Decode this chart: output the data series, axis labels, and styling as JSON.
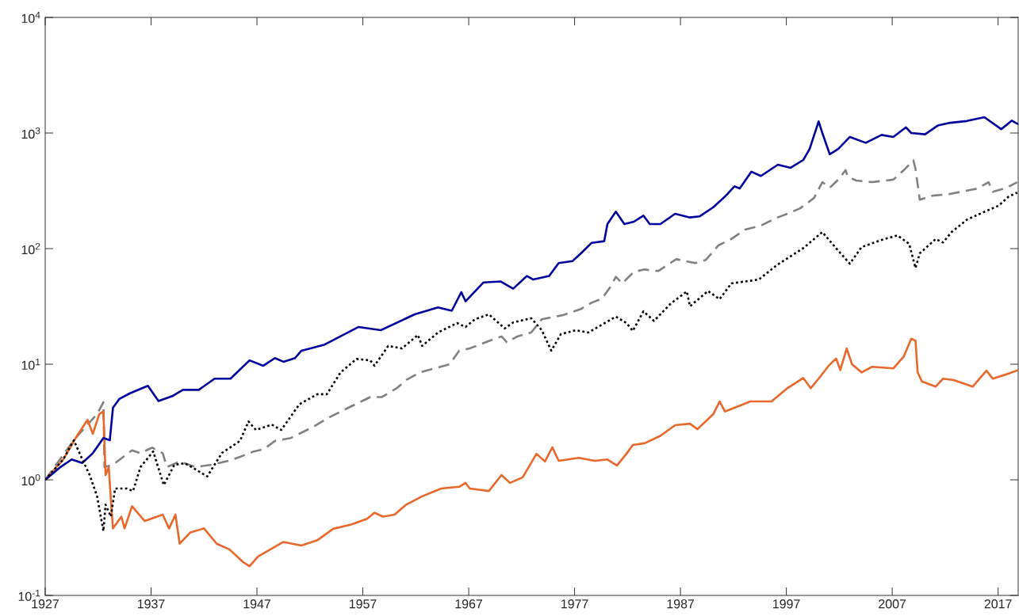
{
  "chart_data": {
    "type": "line",
    "log": "y",
    "xlim": [
      1927,
      2018.9
    ],
    "ylim": [
      0.1,
      10000
    ],
    "xticks": [
      1927,
      1937,
      1947,
      1957,
      1967,
      1977,
      1987,
      1997,
      2007,
      2017
    ],
    "yticks": [
      {
        "value": 0.1,
        "label": "10$^{-1}$"
      },
      {
        "value": 1,
        "label": "10$^{0}$"
      },
      {
        "value": 10,
        "label": "10$^{1}$"
      },
      {
        "value": 100,
        "label": "10$^{2}$"
      },
      {
        "value": 1000,
        "label": "10$^{3}$"
      },
      {
        "value": 10000,
        "label": "10$^{4}$"
      }
    ],
    "series": [
      {
        "color": "#808080",
        "line_style": "dashed",
        "x": [
          1927,
          1929.7,
          1931,
          1931.9,
          1932.5,
          1932.6,
          1933.4,
          1935.2,
          1936,
          1937.1,
          1938.1,
          1938.5,
          1939.7,
          1941.2,
          1942.7,
          1944.3,
          1945.4,
          1946.7,
          1947.7,
          1948.7,
          1950.2,
          1952.4,
          1953.9,
          1955.4,
          1957.7,
          1958.8,
          1960.2,
          1961.1,
          1962.4,
          1965.2,
          1966.1,
          1967.1,
          1968.6,
          1970.1,
          1970.6,
          1971.6,
          1972.9,
          1973.9,
          1975.9,
          1977.6,
          1978.6,
          1979.6,
          1980.4,
          1980.9,
          1981.5,
          1982.6,
          1983.6,
          1984.9,
          1986.6,
          1988.4,
          1989.4,
          1990.6,
          1991.8,
          1993.1,
          1994.6,
          1996.1,
          1997.1,
          1998.3,
          1999.6,
          2000.4,
          2001.1,
          2001.9,
          2002.6,
          2002.8,
          2003.6,
          2005.1,
          2007.1,
          2008.1,
          2009,
          2009.2,
          2009.6,
          2010.8,
          2012.3,
          2013.5,
          2015,
          2016.1,
          2016.5,
          2017.8,
          2018.8
        ],
        "values": [
          1.0,
          2.2,
          3.0,
          3.7,
          4.7,
          1.29,
          1.35,
          1.8,
          1.7,
          1.9,
          1.7,
          1.29,
          1.44,
          1.29,
          1.35,
          1.46,
          1.58,
          1.76,
          1.85,
          2.17,
          2.3,
          2.9,
          3.5,
          4.1,
          5.2,
          5.2,
          6.2,
          7.3,
          8.5,
          10,
          13.1,
          13.7,
          15.5,
          17.4,
          15.5,
          17.4,
          18.8,
          24.5,
          26.6,
          30,
          34,
          37,
          47,
          57,
          50,
          63,
          66,
          64,
          81,
          75,
          80,
          107,
          121,
          146,
          158,
          185,
          200,
          223,
          273,
          376,
          336,
          395,
          478,
          420,
          388,
          376,
          395,
          478,
          580,
          490,
          265,
          287,
          295,
          310,
          330,
          376,
          310,
          336,
          376
        ]
      },
      {
        "color": "#000000",
        "line_style": "dotted",
        "x": [
          1927,
          1928.7,
          1929.7,
          1930.4,
          1931.2,
          1931.9,
          1932.5,
          1932.7,
          1933.2,
          1933.6,
          1934.7,
          1935.3,
          1936,
          1937.2,
          1938.2,
          1939.2,
          1940.2,
          1941.2,
          1942.3,
          1943.7,
          1945.4,
          1946.2,
          1946.9,
          1948.4,
          1949.3,
          1951,
          1952.7,
          1953.6,
          1954.9,
          1956.4,
          1957.7,
          1958.1,
          1959.4,
          1960.7,
          1962.2,
          1962.6,
          1964.1,
          1965.9,
          1966.7,
          1967.6,
          1968.9,
          1970.4,
          1971.2,
          1972.9,
          1973.9,
          1974.8,
          1975.7,
          1977.1,
          1978.3,
          1979.6,
          1980.9,
          1981.9,
          1982.5,
          1983.5,
          1984.5,
          1986.1,
          1987.6,
          1987.9,
          1989.6,
          1990.7,
          1991.8,
          1994.4,
          1996.1,
          1998.6,
          2000.4,
          2001.9,
          2003,
          2004.1,
          2006,
          2007.5,
          2008.6,
          2009.2,
          2009.6,
          2011.1,
          2011.8,
          2012.6,
          2014.1,
          2015.8,
          2017.05,
          2018,
          2018.8
        ],
        "values": [
          1.0,
          1.5,
          2.2,
          1.58,
          1.1,
          0.72,
          0.36,
          0.61,
          0.48,
          0.84,
          0.84,
          0.8,
          1.29,
          1.76,
          0.9,
          1.35,
          1.39,
          1.23,
          1.07,
          1.71,
          2.17,
          3.2,
          2.7,
          3.0,
          2.7,
          4.5,
          5.5,
          5.5,
          8.5,
          11.1,
          10.8,
          9.7,
          14.4,
          13.7,
          17.9,
          14.4,
          18.8,
          22.7,
          21,
          24.5,
          27,
          20.4,
          23,
          25,
          19.7,
          13.1,
          18.2,
          19.7,
          18.8,
          22,
          25.8,
          22.7,
          19.4,
          28.7,
          23.7,
          33.6,
          42.6,
          31.7,
          43,
          36.5,
          50,
          54,
          72,
          101,
          139,
          96,
          74,
          103,
          119,
          130,
          110,
          68,
          91,
          121,
          113,
          139,
          179,
          210,
          235,
          282,
          305
        ]
      },
      {
        "color": "#e8672a",
        "line_style": "solid",
        "x": [
          1927,
          1928.7,
          1930,
          1931,
          1931.5,
          1932.1,
          1932.5,
          1932.7,
          1933,
          1933.3,
          1933.4,
          1934.2,
          1934.5,
          1935.2,
          1936.4,
          1938.1,
          1938.7,
          1939.3,
          1939.7,
          1940.7,
          1942,
          1943.2,
          1944.4,
          1945.7,
          1946.3,
          1947.1,
          1948.4,
          1949.5,
          1951.2,
          1952.7,
          1954.2,
          1955.9,
          1957.4,
          1958.1,
          1958.9,
          1960,
          1961.1,
          1962.6,
          1964.4,
          1966.1,
          1966.7,
          1967.1,
          1968.9,
          1970.1,
          1970.9,
          1972.1,
          1973.4,
          1974.2,
          1974.9,
          1975.5,
          1977.4,
          1978.9,
          1980.1,
          1981,
          1981.9,
          1982.5,
          1983.6,
          1985.1,
          1986.5,
          1987.9,
          1988.6,
          1990.1,
          1990.7,
          1991.2,
          1993.6,
          1995.6,
          1997.1,
          1998.6,
          1999.3,
          2000.05,
          2001,
          2001.7,
          2002.1,
          2002.7,
          2003.2,
          2004.1,
          2005.1,
          2007.1,
          2008.1,
          2008.8,
          2009.2,
          2009.4,
          2009.8,
          2011.1,
          2011.8,
          2012.8,
          2014.6,
          2015.9,
          2016.5,
          2018,
          2018.9
        ],
        "values": [
          1.0,
          1.5,
          2.4,
          3.3,
          2.5,
          3.7,
          3.9,
          1.1,
          1.29,
          0.5,
          0.38,
          0.48,
          0.38,
          0.59,
          0.44,
          0.5,
          0.38,
          0.5,
          0.28,
          0.35,
          0.38,
          0.28,
          0.25,
          0.194,
          0.179,
          0.217,
          0.254,
          0.29,
          0.27,
          0.3,
          0.377,
          0.41,
          0.46,
          0.52,
          0.48,
          0.5,
          0.61,
          0.72,
          0.84,
          0.87,
          0.94,
          0.84,
          0.8,
          1.1,
          0.94,
          1.05,
          1.68,
          1.44,
          1.91,
          1.46,
          1.55,
          1.46,
          1.5,
          1.33,
          1.68,
          2.0,
          2.07,
          2.4,
          2.97,
          3.06,
          2.74,
          3.7,
          4.76,
          3.9,
          4.76,
          4.76,
          6.2,
          7.6,
          6.2,
          7.5,
          9.7,
          11.2,
          8.9,
          13.7,
          10,
          8.5,
          9.5,
          9.2,
          11.7,
          16.6,
          16,
          8.5,
          7.1,
          6.4,
          7.5,
          7.3,
          6.4,
          8.8,
          7.5,
          8.3,
          8.9
        ]
      },
      {
        "color": "#00009f",
        "line_style": "solid",
        "x": [
          1927,
          1928.5,
          1929.5,
          1930.5,
          1931.5,
          1932.5,
          1933.1,
          1933.4,
          1934,
          1935,
          1936.7,
          1937.7,
          1939,
          1940,
          1941.5,
          1943,
          1944.5,
          1946.3,
          1947.6,
          1948.7,
          1949.5,
          1950.6,
          1951.2,
          1953.4,
          1956.6,
          1958.7,
          1961.9,
          1964.1,
          1965.4,
          1966.3,
          1966.7,
          1968.4,
          1970,
          1971.2,
          1972.5,
          1973.1,
          1974.6,
          1975.5,
          1976.8,
          1977.6,
          1978.6,
          1979.8,
          1980.1,
          1980.9,
          1981.7,
          1982.6,
          1983.5,
          1984.1,
          1985.1,
          1986.5,
          1987.9,
          1988.8,
          1990.1,
          1991.2,
          1992.1,
          1992.6,
          1993.7,
          1994.6,
          1996.2,
          1997.4,
          1998.6,
          1999.2,
          2000.05,
          2000.4,
          2001.1,
          2001.9,
          2003,
          2004.5,
          2006,
          2007.1,
          2008.3,
          2008.8,
          2010.1,
          2011.3,
          2012.3,
          2014.05,
          2015.7,
          2017.3,
          2018.3,
          2018.9
        ],
        "values": [
          1.0,
          1.3,
          1.5,
          1.4,
          1.7,
          2.3,
          2.2,
          4.2,
          5.0,
          5.6,
          6.5,
          4.8,
          5.3,
          6.0,
          6.0,
          7.5,
          7.5,
          10.8,
          9.7,
          11.3,
          10.5,
          11.3,
          13.1,
          14.8,
          21,
          19.7,
          27,
          31,
          29,
          42,
          35,
          51,
          52,
          45,
          58,
          54,
          58,
          75,
          78,
          91,
          112,
          116,
          163,
          209,
          163,
          171,
          193,
          163,
          163,
          200,
          186,
          190,
          228,
          282,
          346,
          331,
          463,
          425,
          532,
          500,
          585,
          728,
          1260,
          1000,
          655,
          728,
          925,
          823,
          963,
          925,
          1120,
          1000,
          975,
          1160,
          1220,
          1270,
          1370,
          1080,
          1280,
          1190
        ]
      }
    ]
  }
}
